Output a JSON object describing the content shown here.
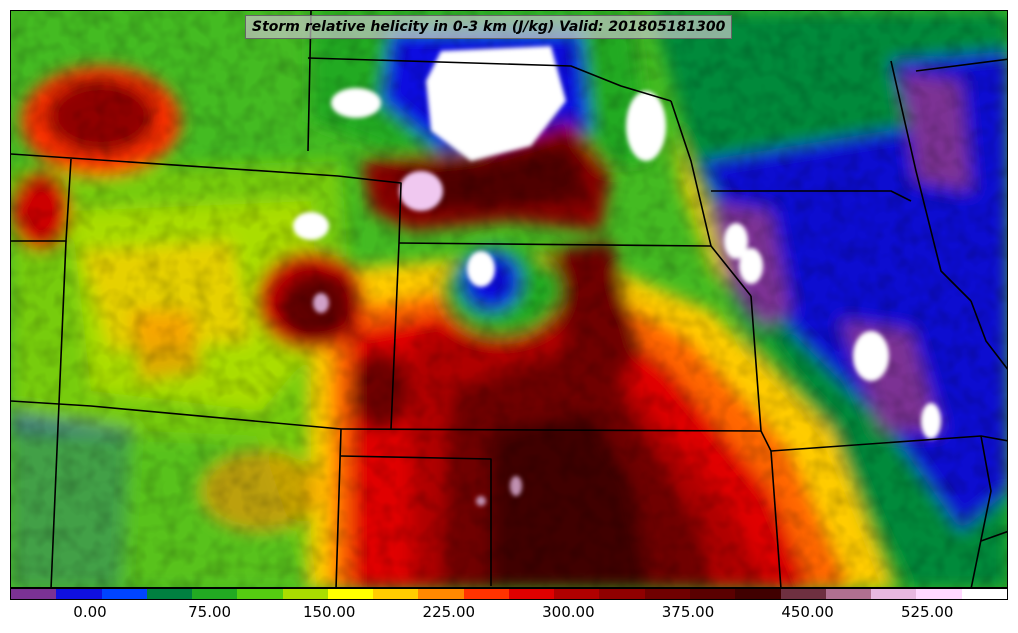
{
  "title": "Storm relative helicity in 0-3 km (J/kg) Valid: 201805181300",
  "colorbar": {
    "colors": [
      "#7b3294",
      "#1010e0",
      "#0044ff",
      "#008040",
      "#22aa22",
      "#55cc11",
      "#aadd00",
      "#ffff00",
      "#ffcc00",
      "#ff8800",
      "#ff3300",
      "#e00000",
      "#b00000",
      "#900000",
      "#700000",
      "#5a0000",
      "#400000",
      "#6e3040",
      "#b07090",
      "#e8b8e0",
      "#ffd8ff",
      "#ffffff"
    ],
    "tick_labels": [
      "0.00",
      "75.00",
      "150.00",
      "225.00",
      "300.00",
      "375.00",
      "450.00",
      "525.00"
    ]
  }
}
